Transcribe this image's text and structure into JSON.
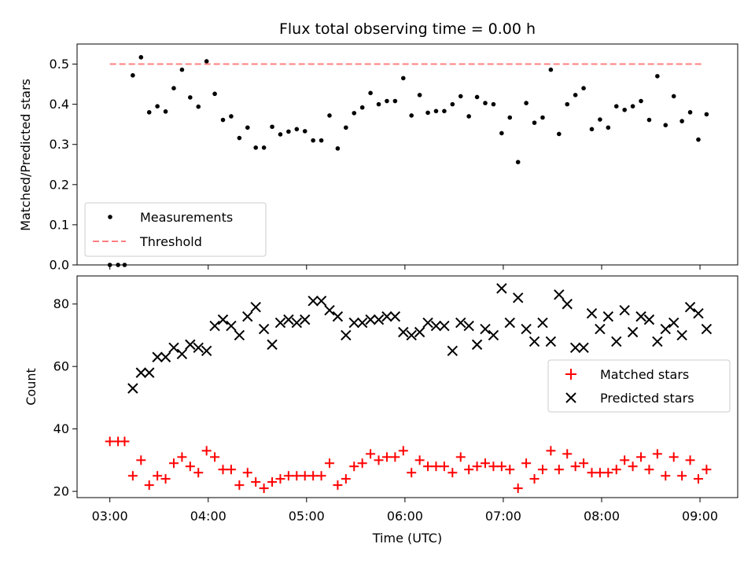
{
  "chart_data": [
    {
      "type": "scatter",
      "title": "Flux total observing time = 0.00 h",
      "xlabel": "",
      "ylabel": "Matched/Predicted stars",
      "xlim": [
        "02:40",
        "09:23"
      ],
      "ylim": [
        0.0,
        0.55
      ],
      "y_ticks": [
        "0.0",
        "0.1",
        "0.2",
        "0.3",
        "0.4",
        "0.5"
      ],
      "x_ticks": [
        "03:00",
        "04:00",
        "05:00",
        "06:00",
        "07:00",
        "08:00",
        "09:00"
      ],
      "legend_position": "lower-left",
      "series": [
        {
          "name": "Measurements",
          "color": "#000000",
          "marker": "dot",
          "points": [
            [
              "03:00",
              0.0
            ],
            [
              "03:05",
              0.0
            ],
            [
              "03:09",
              0.0
            ],
            [
              "03:14",
              0.472
            ],
            [
              "03:19",
              0.517
            ],
            [
              "03:24",
              0.38
            ],
            [
              "03:29",
              0.395
            ],
            [
              "03:34",
              0.382
            ],
            [
              "03:39",
              0.44
            ],
            [
              "03:44",
              0.486
            ],
            [
              "03:49",
              0.417
            ],
            [
              "03:54",
              0.394
            ],
            [
              "03:59",
              0.507
            ],
            [
              "04:04",
              0.426
            ],
            [
              "04:09",
              0.361
            ],
            [
              "04:14",
              0.37
            ],
            [
              "04:19",
              0.316
            ],
            [
              "04:24",
              0.342
            ],
            [
              "04:29",
              0.292
            ],
            [
              "04:34",
              0.292
            ],
            [
              "04:39",
              0.344
            ],
            [
              "04:44",
              0.325
            ],
            [
              "04:49",
              0.332
            ],
            [
              "04:54",
              0.338
            ],
            [
              "04:59",
              0.333
            ],
            [
              "05:04",
              0.31
            ],
            [
              "05:09",
              0.31
            ],
            [
              "05:14",
              0.372
            ],
            [
              "05:19",
              0.29
            ],
            [
              "05:24",
              0.342
            ],
            [
              "05:29",
              0.378
            ],
            [
              "05:34",
              0.392
            ],
            [
              "05:39",
              0.428
            ],
            [
              "05:44",
              0.4
            ],
            [
              "05:49",
              0.408
            ],
            [
              "05:54",
              0.408
            ],
            [
              "05:59",
              0.465
            ],
            [
              "06:04",
              0.372
            ],
            [
              "06:09",
              0.423
            ],
            [
              "06:14",
              0.379
            ],
            [
              "06:19",
              0.383
            ],
            [
              "06:24",
              0.383
            ],
            [
              "06:29",
              0.4
            ],
            [
              "06:34",
              0.42
            ],
            [
              "06:39",
              0.37
            ],
            [
              "06:44",
              0.418
            ],
            [
              "06:49",
              0.403
            ],
            [
              "06:54",
              0.4
            ],
            [
              "06:59",
              0.328
            ],
            [
              "07:04",
              0.367
            ],
            [
              "07:09",
              0.256
            ],
            [
              "07:14",
              0.403
            ],
            [
              "07:19",
              0.354
            ],
            [
              "07:24",
              0.367
            ],
            [
              "07:29",
              0.486
            ],
            [
              "07:34",
              0.326
            ],
            [
              "07:39",
              0.4
            ],
            [
              "07:44",
              0.423
            ],
            [
              "07:49",
              0.44
            ],
            [
              "07:54",
              0.338
            ],
            [
              "07:59",
              0.362
            ],
            [
              "08:04",
              0.342
            ],
            [
              "08:09",
              0.395
            ],
            [
              "08:14",
              0.386
            ],
            [
              "08:19",
              0.395
            ],
            [
              "08:24",
              0.408
            ],
            [
              "08:29",
              0.361
            ],
            [
              "08:34",
              0.47
            ],
            [
              "08:39",
              0.348
            ],
            [
              "08:44",
              0.42
            ],
            [
              "08:49",
              0.358
            ],
            [
              "08:54",
              0.38
            ],
            [
              "08:59",
              0.312
            ],
            [
              "09:04",
              0.375
            ]
          ]
        },
        {
          "name": "Threshold",
          "color": "#ff7f7f",
          "style": "dashed-line",
          "points": [
            [
              "03:00",
              0.5
            ],
            [
              "09:02",
              0.5
            ]
          ]
        }
      ]
    },
    {
      "type": "scatter",
      "title": "",
      "xlabel": "Time (UTC)",
      "ylabel": "Count",
      "xlim": [
        "02:40",
        "09:23"
      ],
      "ylim": [
        18,
        89
      ],
      "y_ticks": [
        "20",
        "40",
        "60",
        "80"
      ],
      "x_ticks": [
        "03:00",
        "04:00",
        "05:00",
        "06:00",
        "07:00",
        "08:00",
        "09:00"
      ],
      "legend_position": "center-right",
      "series": [
        {
          "name": "Matched stars",
          "color": "#ff0000",
          "marker": "plus",
          "points": [
            [
              "03:00",
              36
            ],
            [
              "03:05",
              36
            ],
            [
              "03:09",
              36
            ],
            [
              "03:14",
              25
            ],
            [
              "03:19",
              30
            ],
            [
              "03:24",
              22
            ],
            [
              "03:29",
              25
            ],
            [
              "03:34",
              24
            ],
            [
              "03:39",
              29
            ],
            [
              "03:44",
              31
            ],
            [
              "03:49",
              28
            ],
            [
              "03:54",
              26
            ],
            [
              "03:59",
              33
            ],
            [
              "04:04",
              31
            ],
            [
              "04:09",
              27
            ],
            [
              "04:14",
              27
            ],
            [
              "04:19",
              22
            ],
            [
              "04:24",
              26
            ],
            [
              "04:29",
              23
            ],
            [
              "04:34",
              21
            ],
            [
              "04:39",
              23
            ],
            [
              "04:44",
              24
            ],
            [
              "04:49",
              25
            ],
            [
              "04:54",
              25
            ],
            [
              "04:59",
              25
            ],
            [
              "05:04",
              25
            ],
            [
              "05:09",
              25
            ],
            [
              "05:14",
              29
            ],
            [
              "05:19",
              22
            ],
            [
              "05:24",
              24
            ],
            [
              "05:29",
              28
            ],
            [
              "05:34",
              29
            ],
            [
              "05:39",
              32
            ],
            [
              "05:44",
              30
            ],
            [
              "05:49",
              31
            ],
            [
              "05:54",
              31
            ],
            [
              "05:59",
              33
            ],
            [
              "06:04",
              26
            ],
            [
              "06:09",
              30
            ],
            [
              "06:14",
              28
            ],
            [
              "06:19",
              28
            ],
            [
              "06:24",
              28
            ],
            [
              "06:29",
              26
            ],
            [
              "06:34",
              31
            ],
            [
              "06:39",
              27
            ],
            [
              "06:44",
              28
            ],
            [
              "06:49",
              29
            ],
            [
              "06:54",
              28
            ],
            [
              "06:59",
              28
            ],
            [
              "07:04",
              27
            ],
            [
              "07:09",
              21
            ],
            [
              "07:14",
              29
            ],
            [
              "07:19",
              24
            ],
            [
              "07:24",
              27
            ],
            [
              "07:29",
              33
            ],
            [
              "07:34",
              27
            ],
            [
              "07:39",
              32
            ],
            [
              "07:44",
              28
            ],
            [
              "07:49",
              29
            ],
            [
              "07:54",
              26
            ],
            [
              "07:59",
              26
            ],
            [
              "08:04",
              26
            ],
            [
              "08:09",
              27
            ],
            [
              "08:14",
              30
            ],
            [
              "08:19",
              28
            ],
            [
              "08:24",
              31
            ],
            [
              "08:29",
              27
            ],
            [
              "08:34",
              32
            ],
            [
              "08:39",
              25
            ],
            [
              "08:44",
              31
            ],
            [
              "08:49",
              25
            ],
            [
              "08:54",
              30
            ],
            [
              "08:59",
              24
            ],
            [
              "09:04",
              27
            ]
          ]
        },
        {
          "name": "Predicted stars",
          "color": "#000000",
          "marker": "x",
          "points": [
            [
              "03:14",
              53
            ],
            [
              "03:19",
              58
            ],
            [
              "03:24",
              58
            ],
            [
              "03:29",
              63
            ],
            [
              "03:34",
              63
            ],
            [
              "03:39",
              66
            ],
            [
              "03:44",
              64
            ],
            [
              "03:49",
              67
            ],
            [
              "03:54",
              66
            ],
            [
              "03:59",
              65
            ],
            [
              "04:04",
              73
            ],
            [
              "04:09",
              75
            ],
            [
              "04:14",
              73
            ],
            [
              "04:19",
              70
            ],
            [
              "04:24",
              76
            ],
            [
              "04:29",
              79
            ],
            [
              "04:34",
              72
            ],
            [
              "04:39",
              67
            ],
            [
              "04:44",
              74
            ],
            [
              "04:49",
              75
            ],
            [
              "04:54",
              74
            ],
            [
              "04:59",
              75
            ],
            [
              "05:04",
              81
            ],
            [
              "05:09",
              81
            ],
            [
              "05:14",
              78
            ],
            [
              "05:19",
              76
            ],
            [
              "05:24",
              70
            ],
            [
              "05:29",
              74
            ],
            [
              "05:34",
              74
            ],
            [
              "05:39",
              75
            ],
            [
              "05:44",
              75
            ],
            [
              "05:49",
              76
            ],
            [
              "05:54",
              76
            ],
            [
              "05:59",
              71
            ],
            [
              "06:04",
              70
            ],
            [
              "06:09",
              71
            ],
            [
              "06:14",
              74
            ],
            [
              "06:19",
              73
            ],
            [
              "06:24",
              73
            ],
            [
              "06:29",
              65
            ],
            [
              "06:34",
              74
            ],
            [
              "06:39",
              73
            ],
            [
              "06:44",
              67
            ],
            [
              "06:49",
              72
            ],
            [
              "06:54",
              70
            ],
            [
              "06:59",
              85
            ],
            [
              "07:04",
              74
            ],
            [
              "07:09",
              82
            ],
            [
              "07:14",
              72
            ],
            [
              "07:19",
              68
            ],
            [
              "07:24",
              74
            ],
            [
              "07:29",
              68
            ],
            [
              "07:34",
              83
            ],
            [
              "07:39",
              80
            ],
            [
              "07:44",
              66
            ],
            [
              "07:49",
              66
            ],
            [
              "07:54",
              77
            ],
            [
              "07:59",
              72
            ],
            [
              "08:04",
              76
            ],
            [
              "08:09",
              68
            ],
            [
              "08:14",
              78
            ],
            [
              "08:19",
              71
            ],
            [
              "08:24",
              76
            ],
            [
              "08:29",
              75
            ],
            [
              "08:34",
              68
            ],
            [
              "08:39",
              72
            ],
            [
              "08:44",
              74
            ],
            [
              "08:49",
              70
            ],
            [
              "08:54",
              79
            ],
            [
              "08:59",
              77
            ],
            [
              "09:04",
              72
            ]
          ]
        }
      ]
    }
  ]
}
